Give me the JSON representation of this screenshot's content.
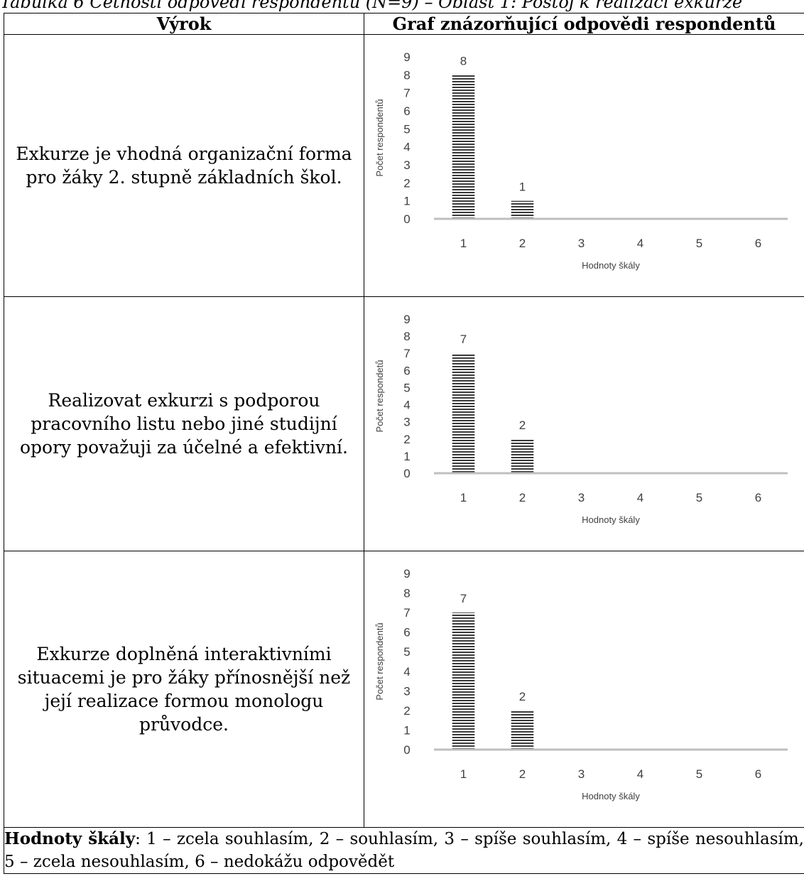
{
  "caption": "Tabulka 6 Četnosti odpovědí respondentů (N=9) – Oblast 1: Postoj k realizaci exkurze",
  "header": {
    "col1": "Výrok",
    "col2": "Graf znázorňující odpovědi respondentů"
  },
  "rows": [
    {
      "statement": "Exkurze je vhodná organizační forma pro žáky 2. stupně základních škol."
    },
    {
      "statement": "Realizovat exkurzi s podporou pracovního listu nebo jiné studijní opory považuji za účelné a efektivní."
    },
    {
      "statement": "Exkurze doplněná interaktivními situacemi je pro žáky přínosnější než její realizace formou monologu průvodce."
    }
  ],
  "chart_data": [
    {
      "type": "bar",
      "categories": [
        "1",
        "2",
        "3",
        "4",
        "5",
        "6"
      ],
      "values": [
        8,
        1,
        0,
        0,
        0,
        0
      ],
      "data_labels": [
        "8",
        "1",
        "",
        "",
        "",
        ""
      ],
      "xlabel": "Hodnoty škály",
      "ylabel": "Počet respondentů",
      "ylim": [
        0,
        9
      ],
      "yticks": [
        "0",
        "1",
        "2",
        "3",
        "4",
        "5",
        "6",
        "7",
        "8",
        "9"
      ],
      "grid": false,
      "bar_fill": "horizontal-stripes",
      "bar_color": "#3a3a3a",
      "axis_color": "#bfbfbf"
    },
    {
      "type": "bar",
      "categories": [
        "1",
        "2",
        "3",
        "4",
        "5",
        "6"
      ],
      "values": [
        7,
        2,
        0,
        0,
        0,
        0
      ],
      "data_labels": [
        "7",
        "2",
        "",
        "",
        "",
        ""
      ],
      "xlabel": "Hodnoty škály",
      "ylabel": "Počet respondetů",
      "ylim": [
        0,
        9
      ],
      "yticks": [
        "0",
        "1",
        "2",
        "3",
        "4",
        "5",
        "6",
        "7",
        "8",
        "9"
      ],
      "grid": false,
      "bar_fill": "horizontal-stripes",
      "bar_color": "#3a3a3a",
      "axis_color": "#bfbfbf"
    },
    {
      "type": "bar",
      "categories": [
        "1",
        "2",
        "3",
        "4",
        "5",
        "6"
      ],
      "values": [
        7,
        2,
        0,
        0,
        0,
        0
      ],
      "data_labels": [
        "7",
        "2",
        "",
        "",
        "",
        ""
      ],
      "xlabel": "Hodnoty škály",
      "ylabel": "Počet respondentů",
      "ylim": [
        0,
        9
      ],
      "yticks": [
        "0",
        "1",
        "2",
        "3",
        "4",
        "5",
        "6",
        "7",
        "8",
        "9"
      ],
      "grid": false,
      "bar_fill": "horizontal-stripes",
      "bar_color": "#3a3a3a",
      "axis_color": "#bfbfbf"
    }
  ],
  "note": {
    "label": "Hodnoty škály",
    "text": ": 1 – zcela souhlasím, 2 – souhlasím, 3 – spíše souhlasím, 4 – spíše nesouhlasím, 5 – zcela nesouhlasím, 6 – nedokážu odpovědět"
  }
}
